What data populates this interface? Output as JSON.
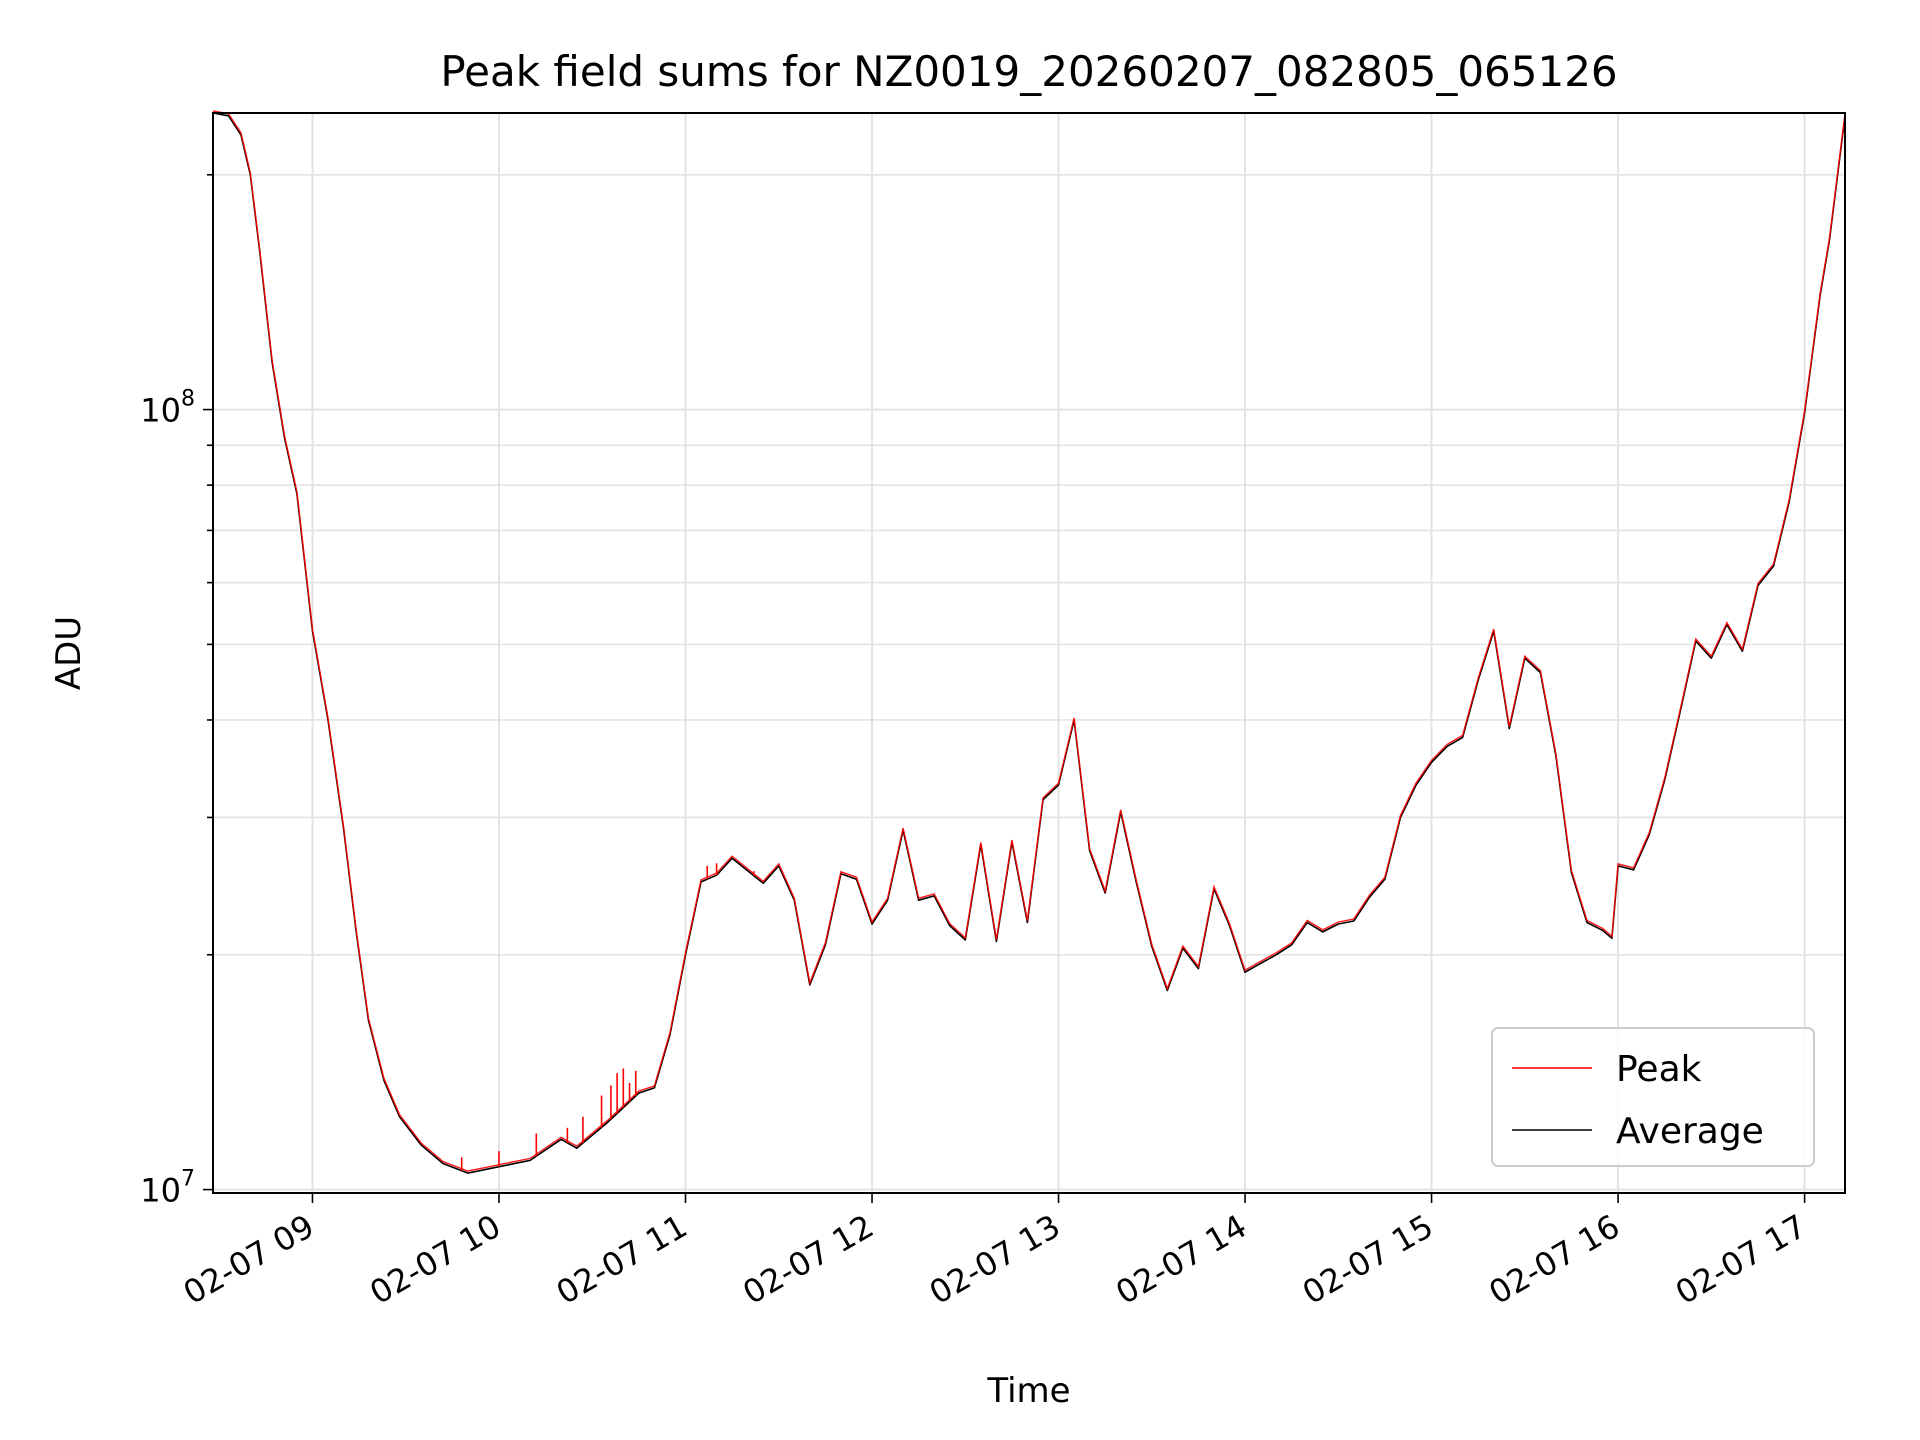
{
  "chart_data": {
    "type": "line",
    "title": "Peak field sums for NZ0019_20260207_082805_065126",
    "xlabel": "Time",
    "ylabel": "ADU",
    "yscale": "log",
    "ylim": [
      9900000,
      240000000
    ],
    "xlim": [
      "2026-02-07 08:28",
      "2026-02-07 17:13"
    ],
    "x_ticks": [
      "02-07 09",
      "02-07 10",
      "02-07 11",
      "02-07 12",
      "02-07 13",
      "02-07 14",
      "02-07 15",
      "02-07 16",
      "02-07 17"
    ],
    "y_ticks": [
      {
        "value": 10000000,
        "base": "10",
        "exp": "7"
      },
      {
        "value": 100000000,
        "base": "10",
        "exp": "8"
      }
    ],
    "grid": true,
    "legend_position": "lower-right",
    "series": [
      {
        "name": "Peak",
        "color": "#ff0000"
      },
      {
        "name": "Average",
        "color": "#000000"
      }
    ],
    "average_points": [
      [
        "2026-02-07 08:28",
        240000000
      ],
      [
        "2026-02-07 08:33",
        238000000
      ],
      [
        "2026-02-07 08:37",
        225000000
      ],
      [
        "2026-02-07 08:40",
        200000000
      ],
      [
        "2026-02-07 08:43",
        160000000
      ],
      [
        "2026-02-07 08:47",
        115000000
      ],
      [
        "2026-02-07 08:51",
        92000000
      ],
      [
        "2026-02-07 08:55",
        78000000
      ],
      [
        "2026-02-07 09:00",
        52000000
      ],
      [
        "2026-02-07 09:05",
        40000000
      ],
      [
        "2026-02-07 09:10",
        29000000
      ],
      [
        "2026-02-07 09:14",
        21500000
      ],
      [
        "2026-02-07 09:18",
        16500000
      ],
      [
        "2026-02-07 09:23",
        13800000
      ],
      [
        "2026-02-07 09:28",
        12400000
      ],
      [
        "2026-02-07 09:35",
        11400000
      ],
      [
        "2026-02-07 09:42",
        10800000
      ],
      [
        "2026-02-07 09:50",
        10500000
      ],
      [
        "2026-02-07 10:00",
        10700000
      ],
      [
        "2026-02-07 10:10",
        10900000
      ],
      [
        "2026-02-07 10:20",
        11600000
      ],
      [
        "2026-02-07 10:25",
        11300000
      ],
      [
        "2026-02-07 10:35",
        12200000
      ],
      [
        "2026-02-07 10:45",
        13300000
      ],
      [
        "2026-02-07 10:50",
        13500000
      ],
      [
        "2026-02-07 10:55",
        15800000
      ],
      [
        "2026-02-07 11:00",
        20000000
      ],
      [
        "2026-02-07 11:05",
        24800000
      ],
      [
        "2026-02-07 11:10",
        25300000
      ],
      [
        "2026-02-07 11:15",
        26600000
      ],
      [
        "2026-02-07 11:25",
        24700000
      ],
      [
        "2026-02-07 11:30",
        26000000
      ],
      [
        "2026-02-07 11:35",
        23500000
      ],
      [
        "2026-02-07 11:40",
        18300000
      ],
      [
        "2026-02-07 11:45",
        20600000
      ],
      [
        "2026-02-07 11:50",
        25400000
      ],
      [
        "2026-02-07 11:55",
        25000000
      ],
      [
        "2026-02-07 12:00",
        21900000
      ],
      [
        "2026-02-07 12:05",
        23500000
      ],
      [
        "2026-02-07 12:10",
        28900000
      ],
      [
        "2026-02-07 12:15",
        23500000
      ],
      [
        "2026-02-07 12:20",
        23800000
      ],
      [
        "2026-02-07 12:25",
        21800000
      ],
      [
        "2026-02-07 12:30",
        20900000
      ],
      [
        "2026-02-07 12:35",
        27700000
      ],
      [
        "2026-02-07 12:40",
        20800000
      ],
      [
        "2026-02-07 12:45",
        27900000
      ],
      [
        "2026-02-07 12:50",
        22000000
      ],
      [
        "2026-02-07 12:55",
        31600000
      ],
      [
        "2026-02-07 13:00",
        33000000
      ],
      [
        "2026-02-07 13:05",
        40000000
      ],
      [
        "2026-02-07 13:10",
        27200000
      ],
      [
        "2026-02-07 13:15",
        24000000
      ],
      [
        "2026-02-07 13:20",
        30500000
      ],
      [
        "2026-02-07 13:25",
        24800000
      ],
      [
        "2026-02-07 13:30",
        20500000
      ],
      [
        "2026-02-07 13:35",
        18000000
      ],
      [
        "2026-02-07 13:40",
        20400000
      ],
      [
        "2026-02-07 13:45",
        19200000
      ],
      [
        "2026-02-07 13:50",
        24300000
      ],
      [
        "2026-02-07 13:55",
        21800000
      ],
      [
        "2026-02-07 14:00",
        19000000
      ],
      [
        "2026-02-07 14:05",
        19500000
      ],
      [
        "2026-02-07 14:10",
        20000000
      ],
      [
        "2026-02-07 14:15",
        20600000
      ],
      [
        "2026-02-07 14:20",
        22000000
      ],
      [
        "2026-02-07 14:25",
        21400000
      ],
      [
        "2026-02-07 14:30",
        21900000
      ],
      [
        "2026-02-07 14:35",
        22100000
      ],
      [
        "2026-02-07 14:40",
        23700000
      ],
      [
        "2026-02-07 14:45",
        25000000
      ],
      [
        "2026-02-07 14:50",
        30000000
      ],
      [
        "2026-02-07 14:55",
        33000000
      ],
      [
        "2026-02-07 15:00",
        35300000
      ],
      [
        "2026-02-07 15:05",
        37000000
      ],
      [
        "2026-02-07 15:10",
        38000000
      ],
      [
        "2026-02-07 15:15",
        45000000
      ],
      [
        "2026-02-07 15:20",
        52000000
      ],
      [
        "2026-02-07 15:25",
        39000000
      ],
      [
        "2026-02-07 15:30",
        48000000
      ],
      [
        "2026-02-07 15:35",
        46000000
      ],
      [
        "2026-02-07 15:40",
        36000000
      ],
      [
        "2026-02-07 15:45",
        25500000
      ],
      [
        "2026-02-07 15:50",
        22000000
      ],
      [
        "2026-02-07 15:55",
        21500000
      ],
      [
        "2026-02-07 15:58",
        21000000
      ],
      [
        "2026-02-07 16:00",
        26000000
      ],
      [
        "2026-02-07 16:05",
        25700000
      ],
      [
        "2026-02-07 16:10",
        28500000
      ],
      [
        "2026-02-07 16:15",
        33500000
      ],
      [
        "2026-02-07 16:20",
        41000000
      ],
      [
        "2026-02-07 16:25",
        50500000
      ],
      [
        "2026-02-07 16:30",
        48000000
      ],
      [
        "2026-02-07 16:35",
        53000000
      ],
      [
        "2026-02-07 16:40",
        49000000
      ],
      [
        "2026-02-07 16:45",
        59500000
      ],
      [
        "2026-02-07 16:50",
        63000000
      ],
      [
        "2026-02-07 16:55",
        76000000
      ],
      [
        "2026-02-07 17:00",
        99000000
      ],
      [
        "2026-02-07 17:05",
        140000000
      ],
      [
        "2026-02-07 17:08",
        165000000
      ],
      [
        "2026-02-07 17:13",
        238000000
      ]
    ],
    "peak_spikes": [
      [
        "2026-02-07 09:48",
        11000000
      ],
      [
        "2026-02-07 10:00",
        11200000
      ],
      [
        "2026-02-07 10:12",
        11800000
      ],
      [
        "2026-02-07 10:22",
        12000000
      ],
      [
        "2026-02-07 10:27",
        12400000
      ],
      [
        "2026-02-07 10:33",
        13200000
      ],
      [
        "2026-02-07 10:36",
        13600000
      ],
      [
        "2026-02-07 10:38",
        14100000
      ],
      [
        "2026-02-07 10:40",
        14300000
      ],
      [
        "2026-02-07 10:42",
        13700000
      ],
      [
        "2026-02-07 10:44",
        14200000
      ],
      [
        "2026-02-07 11:07",
        26000000
      ],
      [
        "2026-02-07 11:10",
        26200000
      ],
      [
        "2026-02-07 11:18",
        26000000
      ],
      [
        "2026-02-07 11:22",
        25600000
      ]
    ]
  }
}
